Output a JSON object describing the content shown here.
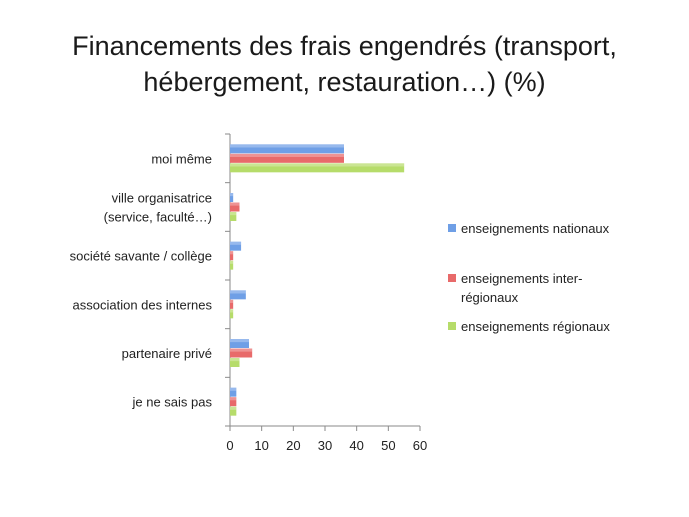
{
  "chart_data": {
    "type": "bar",
    "orientation": "horizontal",
    "title_lines": [
      "Financements des frais engendrés (transport,",
      "hébergement, restauration…) (%)"
    ],
    "categories": [
      [
        "moi même"
      ],
      [
        "ville organisatrice",
        "(service, faculté…)"
      ],
      [
        "société savante / collège"
      ],
      [
        "association des internes"
      ],
      [
        "partenaire privé"
      ],
      [
        "je ne sais pas"
      ]
    ],
    "series": [
      {
        "name": "enseignements nationaux",
        "color": "#6f9fe6",
        "values": [
          36,
          1,
          3.5,
          5,
          6,
          2
        ]
      },
      {
        "name_lines": [
          "enseignements inter-",
          "régionaux"
        ],
        "name": "enseignements inter-régionaux",
        "color": "#e86a6a",
        "values": [
          36,
          3,
          1,
          1,
          7,
          2
        ]
      },
      {
        "name": "enseignements régionaux",
        "color": "#b6dc6a",
        "values": [
          55,
          2,
          1,
          1,
          3,
          2
        ]
      }
    ],
    "xlim": [
      0,
      60
    ],
    "xticks": [
      "0",
      "10",
      "20",
      "30",
      "40",
      "50",
      "60"
    ],
    "grid": false,
    "legend_position": "right"
  }
}
